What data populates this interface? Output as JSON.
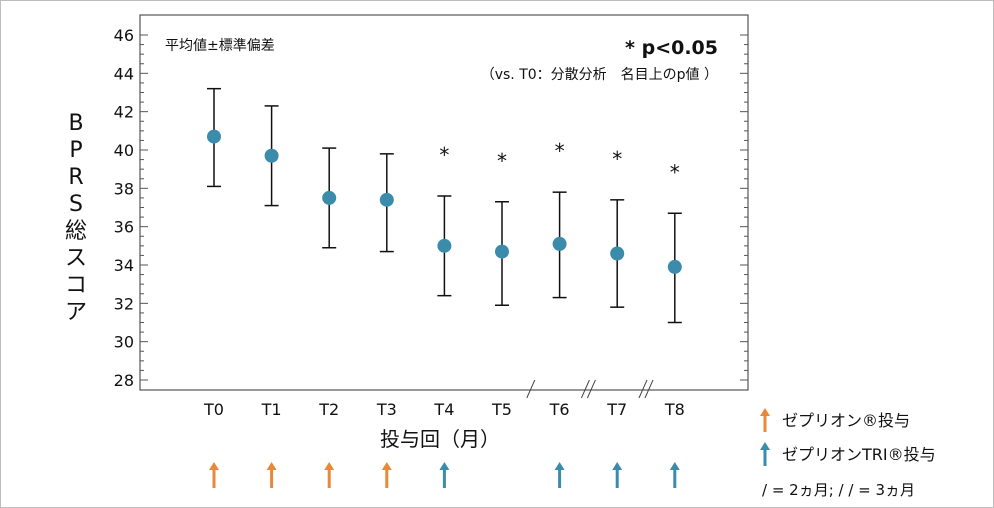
{
  "chart_data": {
    "type": "scatter",
    "ylabel": "BPRS総スコア",
    "xlabel": "投与回（月）",
    "ylim": [
      28,
      46
    ],
    "yticks": [
      28,
      30,
      32,
      34,
      36,
      38,
      40,
      42,
      44,
      46
    ],
    "categories": [
      "T0",
      "T1",
      "T2",
      "T3",
      "T4",
      "T5",
      "T6",
      "T7",
      "T8"
    ],
    "mean": [
      40.7,
      39.7,
      37.5,
      37.4,
      35.0,
      34.7,
      35.1,
      34.6,
      33.9
    ],
    "error_low": [
      38.1,
      37.1,
      34.9,
      34.7,
      32.4,
      31.9,
      32.3,
      31.8,
      31.0
    ],
    "error_high": [
      43.2,
      42.3,
      40.1,
      39.8,
      37.6,
      37.3,
      37.8,
      37.4,
      36.7
    ],
    "significant": [
      false,
      false,
      false,
      false,
      true,
      true,
      true,
      true,
      true
    ],
    "significance_mark": "*",
    "annotation_left": "平均値±標準偏差",
    "annotation_sig": "* p<0.05",
    "annotation_test": "（vs. T0：分散分析　名目上のp値 ）",
    "axis_breaks": [
      {
        "between": [
          "T5",
          "T6"
        ],
        "mark": "/"
      },
      {
        "between": [
          "T6",
          "T7"
        ],
        "mark": "//"
      },
      {
        "between": [
          "T7",
          "T8"
        ],
        "mark": "//"
      }
    ],
    "dose_arrows": [
      "orange",
      "orange",
      "orange",
      "orange",
      "teal",
      "none",
      "teal",
      "teal",
      "teal"
    ],
    "legend": [
      {
        "color": "orange",
        "label": "ゼプリオン®投与"
      },
      {
        "color": "teal",
        "label": "ゼプリオンTRI®投与"
      }
    ],
    "break_note": "/ = 2ヵ月; / / = 3ヵ月",
    "grid": false,
    "colors": {
      "marker": "#3b8baa",
      "orange": "#e8893a",
      "teal": "#3a8caa"
    }
  }
}
